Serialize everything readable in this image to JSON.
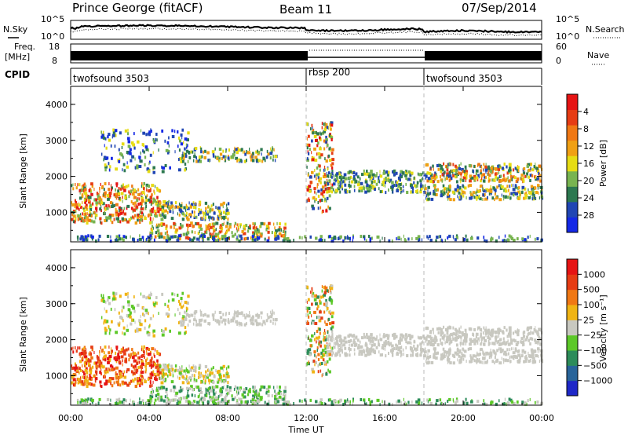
{
  "header": {
    "station": "Prince George (fitACF)",
    "beam": "Beam 11",
    "date": "07/Sep/2014"
  },
  "left_labels": {
    "nsky": "N.Sky",
    "freq_top": "Freq.",
    "freq_unit": "[MHz]",
    "cpid": "CPID"
  },
  "right_labels": {
    "nsearch": "N.Search",
    "nave": "Nave"
  },
  "nsky_ticks": [
    "10^5",
    "10^0"
  ],
  "nsearch_ticks": [
    "10^5",
    "10^0"
  ],
  "freq_ticks": [
    "18",
    "8"
  ],
  "nave_ticks": [
    "60",
    "0"
  ],
  "cpid_segments": [
    {
      "label": "twofsound 3503",
      "start_hour": 0
    },
    {
      "label": "rbsp 200",
      "start_hour": 12
    },
    {
      "label": "twofsound 3503",
      "start_hour": 18
    }
  ],
  "chart_data": [
    {
      "type": "heatmap",
      "name": "power",
      "ylabel": "Slant Range [km]",
      "xlabel": "",
      "xlim": [
        0,
        24
      ],
      "ylim": [
        180,
        4500
      ],
      "y_ticks": [
        1000,
        2000,
        3000,
        4000
      ],
      "colorbar": {
        "label": "Power [dB]",
        "ticks": [
          "4",
          "8",
          "12",
          "16",
          "20",
          "24",
          "28"
        ],
        "colors": [
          "#1428e6",
          "#2046b4",
          "#2c7850",
          "#78b450",
          "#e6dc14",
          "#f0a014",
          "#f07814",
          "#e63c14",
          "#e61414"
        ]
      }
    },
    {
      "type": "heatmap",
      "name": "velocity",
      "ylabel": "Slant Range [km]",
      "xlabel": "Time UT",
      "xlim": [
        0,
        24
      ],
      "ylim": [
        180,
        4500
      ],
      "y_ticks": [
        1000,
        2000,
        3000,
        4000
      ],
      "x_ticks": [
        "00:00",
        "04:00",
        "08:00",
        "12:00",
        "16:00",
        "20:00",
        "00:00"
      ],
      "colorbar": {
        "label": "Velocity [m s⁻¹]",
        "ticks": [
          "1000",
          "500",
          "100",
          "25",
          "−25",
          "−100",
          "−500",
          "−1000"
        ],
        "colors": [
          "#1e28c8",
          "#28649a",
          "#2d8c5a",
          "#5cc828",
          "#c8c8c0",
          "#f0b414",
          "#f07814",
          "#e63c14",
          "#e61414"
        ]
      }
    }
  ]
}
